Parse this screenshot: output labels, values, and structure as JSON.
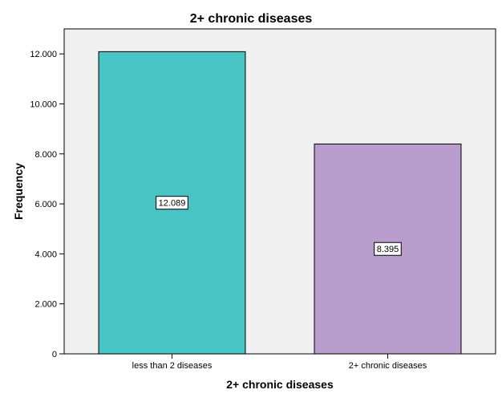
{
  "chart_data": {
    "type": "bar",
    "title": "2+ chronic diseases",
    "xlabel": "2+ chronic diseases",
    "ylabel": "Frequency",
    "categories": [
      "less than 2 diseases",
      "2+ chronic diseases"
    ],
    "values": [
      12089,
      8395
    ],
    "data_labels": [
      "12.089",
      "8.395"
    ],
    "ylim": [
      0,
      13000
    ],
    "yticks": [
      0,
      2000,
      4000,
      6000,
      8000,
      10000,
      12000
    ],
    "ytick_labels": [
      "0",
      "2.000",
      "4.000",
      "6.000",
      "8.000",
      "10.000",
      "12.000"
    ],
    "bar_colors": [
      "#48c4c4",
      "#b89ccb"
    ],
    "plot_background": "#f0f0f0",
    "grid": false,
    "legend": "none"
  }
}
